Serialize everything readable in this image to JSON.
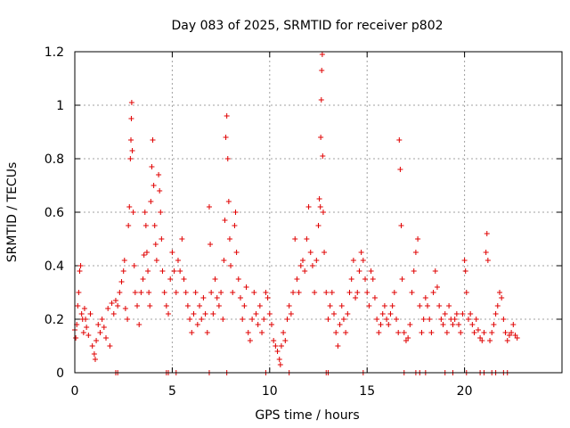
{
  "chart_data": {
    "type": "scatter",
    "title": "Day 083 of 2025, SRMTID for receiver p802",
    "xlabel": "GPS time / hours",
    "ylabel": "SRMTID / TECUs",
    "xlim": [
      0,
      25
    ],
    "ylim": [
      0,
      1.2
    ],
    "xticks": [
      0,
      5,
      10,
      15,
      20
    ],
    "xtick_labels": [
      "0",
      "5",
      "10",
      "15",
      "20"
    ],
    "yticks": [
      0,
      0.2,
      0.4,
      0.6,
      0.8,
      1.0,
      1.2
    ],
    "ytick_labels": [
      "0",
      "0.2",
      "0.4",
      "0.6",
      "0.8",
      "1",
      "1.2"
    ],
    "grid": true,
    "marker": "+",
    "color": "#e00000",
    "series": [
      {
        "name": "SRMTID",
        "points": [
          [
            0.0,
            0.16
          ],
          [
            0.05,
            0.13
          ],
          [
            0.1,
            0.18
          ],
          [
            0.15,
            0.25
          ],
          [
            0.2,
            0.3
          ],
          [
            0.25,
            0.38
          ],
          [
            0.3,
            0.4
          ],
          [
            0.35,
            0.22
          ],
          [
            0.4,
            0.2
          ],
          [
            0.45,
            0.15
          ],
          [
            0.5,
            0.24
          ],
          [
            0.55,
            0.2
          ],
          [
            0.6,
            0.17
          ],
          [
            0.7,
            0.14
          ],
          [
            0.8,
            0.22
          ],
          [
            0.9,
            0.1
          ],
          [
            1.0,
            0.07
          ],
          [
            1.05,
            0.05
          ],
          [
            1.1,
            0.12
          ],
          [
            1.2,
            0.18
          ],
          [
            1.3,
            0.15
          ],
          [
            1.4,
            0.2
          ],
          [
            1.5,
            0.17
          ],
          [
            1.6,
            0.13
          ],
          [
            1.7,
            0.24
          ],
          [
            1.8,
            0.1
          ],
          [
            1.9,
            0.26
          ],
          [
            2.0,
            0.22
          ],
          [
            2.1,
            0.27
          ],
          [
            2.2,
            0.25
          ],
          [
            2.3,
            0.3
          ],
          [
            2.4,
            0.34
          ],
          [
            2.5,
            0.38
          ],
          [
            2.55,
            0.42
          ],
          [
            2.6,
            0.24
          ],
          [
            2.7,
            0.2
          ],
          [
            2.75,
            0.55
          ],
          [
            2.8,
            0.62
          ],
          [
            2.85,
            0.8
          ],
          [
            2.88,
            0.87
          ],
          [
            2.9,
            0.95
          ],
          [
            2.92,
            1.01
          ],
          [
            2.95,
            0.83
          ],
          [
            3.0,
            0.6
          ],
          [
            3.05,
            0.4
          ],
          [
            3.1,
            0.3
          ],
          [
            3.2,
            0.25
          ],
          [
            3.3,
            0.18
          ],
          [
            3.4,
            0.3
          ],
          [
            3.5,
            0.35
          ],
          [
            3.55,
            0.44
          ],
          [
            3.6,
            0.6
          ],
          [
            3.65,
            0.55
          ],
          [
            3.7,
            0.45
          ],
          [
            3.75,
            0.38
          ],
          [
            3.8,
            0.3
          ],
          [
            3.85,
            0.25
          ],
          [
            3.9,
            0.64
          ],
          [
            3.95,
            0.77
          ],
          [
            4.0,
            0.87
          ],
          [
            4.05,
            0.7
          ],
          [
            4.1,
            0.55
          ],
          [
            4.15,
            0.48
          ],
          [
            4.2,
            0.42
          ],
          [
            4.3,
            0.74
          ],
          [
            4.35,
            0.68
          ],
          [
            4.4,
            0.6
          ],
          [
            4.45,
            0.5
          ],
          [
            4.5,
            0.38
          ],
          [
            4.6,
            0.3
          ],
          [
            4.7,
            0.25
          ],
          [
            4.8,
            0.22
          ],
          [
            4.9,
            0.35
          ],
          [
            5.0,
            0.45
          ],
          [
            5.1,
            0.38
          ],
          [
            5.2,
            0.3
          ],
          [
            5.3,
            0.42
          ],
          [
            5.4,
            0.38
          ],
          [
            5.5,
            0.5
          ],
          [
            5.6,
            0.35
          ],
          [
            5.7,
            0.3
          ],
          [
            5.8,
            0.25
          ],
          [
            5.9,
            0.2
          ],
          [
            6.0,
            0.15
          ],
          [
            6.1,
            0.22
          ],
          [
            6.2,
            0.3
          ],
          [
            6.3,
            0.18
          ],
          [
            6.4,
            0.25
          ],
          [
            6.5,
            0.2
          ],
          [
            6.6,
            0.28
          ],
          [
            6.7,
            0.22
          ],
          [
            6.8,
            0.15
          ],
          [
            6.9,
            0.62
          ],
          [
            6.95,
            0.48
          ],
          [
            7.0,
            0.3
          ],
          [
            7.1,
            0.22
          ],
          [
            7.2,
            0.35
          ],
          [
            7.3,
            0.28
          ],
          [
            7.4,
            0.25
          ],
          [
            7.5,
            0.3
          ],
          [
            7.6,
            0.2
          ],
          [
            7.65,
            0.42
          ],
          [
            7.7,
            0.57
          ],
          [
            7.75,
            0.88
          ],
          [
            7.8,
            0.96
          ],
          [
            7.85,
            0.8
          ],
          [
            7.9,
            0.64
          ],
          [
            7.95,
            0.5
          ],
          [
            8.0,
            0.4
          ],
          [
            8.1,
            0.3
          ],
          [
            8.2,
            0.55
          ],
          [
            8.25,
            0.6
          ],
          [
            8.3,
            0.45
          ],
          [
            8.4,
            0.35
          ],
          [
            8.5,
            0.28
          ],
          [
            8.6,
            0.2
          ],
          [
            8.7,
            0.25
          ],
          [
            8.8,
            0.32
          ],
          [
            8.9,
            0.15
          ],
          [
            9.0,
            0.12
          ],
          [
            9.1,
            0.2
          ],
          [
            9.2,
            0.3
          ],
          [
            9.3,
            0.22
          ],
          [
            9.4,
            0.18
          ],
          [
            9.5,
            0.25
          ],
          [
            9.6,
            0.15
          ],
          [
            9.7,
            0.2
          ],
          [
            9.8,
            0.3
          ],
          [
            9.9,
            0.28
          ],
          [
            10.0,
            0.22
          ],
          [
            10.1,
            0.18
          ],
          [
            10.2,
            0.12
          ],
          [
            10.3,
            0.1
          ],
          [
            10.4,
            0.08
          ],
          [
            10.5,
            0.05
          ],
          [
            10.55,
            0.03
          ],
          [
            10.6,
            0.1
          ],
          [
            10.7,
            0.15
          ],
          [
            10.8,
            0.12
          ],
          [
            10.9,
            0.2
          ],
          [
            11.0,
            0.25
          ],
          [
            11.1,
            0.22
          ],
          [
            11.2,
            0.3
          ],
          [
            11.3,
            0.5
          ],
          [
            11.4,
            0.35
          ],
          [
            11.5,
            0.3
          ],
          [
            11.6,
            0.4
          ],
          [
            11.7,
            0.42
          ],
          [
            11.8,
            0.38
          ],
          [
            11.9,
            0.5
          ],
          [
            12.0,
            0.62
          ],
          [
            12.1,
            0.45
          ],
          [
            12.2,
            0.4
          ],
          [
            12.3,
            0.3
          ],
          [
            12.4,
            0.42
          ],
          [
            12.5,
            0.55
          ],
          [
            12.55,
            0.65
          ],
          [
            12.6,
            0.62
          ],
          [
            12.62,
            0.88
          ],
          [
            12.65,
            1.02
          ],
          [
            12.67,
            1.13
          ],
          [
            12.7,
            1.19
          ],
          [
            12.72,
            0.81
          ],
          [
            12.75,
            0.6
          ],
          [
            12.8,
            0.45
          ],
          [
            12.9,
            0.3
          ],
          [
            13.0,
            0.2
          ],
          [
            13.1,
            0.25
          ],
          [
            13.2,
            0.3
          ],
          [
            13.3,
            0.22
          ],
          [
            13.4,
            0.15
          ],
          [
            13.5,
            0.1
          ],
          [
            13.6,
            0.18
          ],
          [
            13.7,
            0.25
          ],
          [
            13.8,
            0.2
          ],
          [
            13.9,
            0.15
          ],
          [
            14.0,
            0.22
          ],
          [
            14.1,
            0.3
          ],
          [
            14.2,
            0.35
          ],
          [
            14.3,
            0.42
          ],
          [
            14.4,
            0.28
          ],
          [
            14.5,
            0.3
          ],
          [
            14.6,
            0.38
          ],
          [
            14.7,
            0.45
          ],
          [
            14.8,
            0.42
          ],
          [
            14.9,
            0.35
          ],
          [
            15.0,
            0.3
          ],
          [
            15.1,
            0.25
          ],
          [
            15.2,
            0.38
          ],
          [
            15.3,
            0.35
          ],
          [
            15.4,
            0.28
          ],
          [
            15.5,
            0.2
          ],
          [
            15.6,
            0.15
          ],
          [
            15.7,
            0.18
          ],
          [
            15.8,
            0.22
          ],
          [
            15.9,
            0.25
          ],
          [
            16.0,
            0.2
          ],
          [
            16.1,
            0.18
          ],
          [
            16.2,
            0.22
          ],
          [
            16.3,
            0.25
          ],
          [
            16.4,
            0.3
          ],
          [
            16.5,
            0.2
          ],
          [
            16.6,
            0.15
          ],
          [
            16.65,
            0.87
          ],
          [
            16.7,
            0.76
          ],
          [
            16.75,
            0.55
          ],
          [
            16.8,
            0.35
          ],
          [
            16.9,
            0.15
          ],
          [
            17.0,
            0.12
          ],
          [
            17.1,
            0.13
          ],
          [
            17.2,
            0.18
          ],
          [
            17.3,
            0.3
          ],
          [
            17.4,
            0.38
          ],
          [
            17.5,
            0.45
          ],
          [
            17.6,
            0.5
          ],
          [
            17.7,
            0.25
          ],
          [
            17.8,
            0.15
          ],
          [
            17.9,
            0.2
          ],
          [
            18.0,
            0.28
          ],
          [
            18.1,
            0.25
          ],
          [
            18.2,
            0.2
          ],
          [
            18.3,
            0.15
          ],
          [
            18.4,
            0.3
          ],
          [
            18.5,
            0.38
          ],
          [
            18.6,
            0.32
          ],
          [
            18.7,
            0.25
          ],
          [
            18.8,
            0.2
          ],
          [
            18.9,
            0.18
          ],
          [
            19.0,
            0.22
          ],
          [
            19.1,
            0.15
          ],
          [
            19.2,
            0.25
          ],
          [
            19.3,
            0.2
          ],
          [
            19.4,
            0.18
          ],
          [
            19.5,
            0.2
          ],
          [
            19.6,
            0.22
          ],
          [
            19.7,
            0.18
          ],
          [
            19.8,
            0.15
          ],
          [
            19.9,
            0.22
          ],
          [
            20.0,
            0.42
          ],
          [
            20.05,
            0.38
          ],
          [
            20.1,
            0.3
          ],
          [
            20.2,
            0.2
          ],
          [
            20.3,
            0.22
          ],
          [
            20.4,
            0.18
          ],
          [
            20.5,
            0.15
          ],
          [
            20.6,
            0.2
          ],
          [
            20.7,
            0.16
          ],
          [
            20.8,
            0.13
          ],
          [
            20.9,
            0.12
          ],
          [
            21.0,
            0.15
          ],
          [
            21.1,
            0.45
          ],
          [
            21.15,
            0.52
          ],
          [
            21.2,
            0.42
          ],
          [
            21.3,
            0.12
          ],
          [
            21.4,
            0.15
          ],
          [
            21.5,
            0.18
          ],
          [
            21.6,
            0.22
          ],
          [
            21.7,
            0.25
          ],
          [
            21.8,
            0.3
          ],
          [
            21.9,
            0.28
          ],
          [
            22.0,
            0.2
          ],
          [
            22.1,
            0.15
          ],
          [
            22.2,
            0.12
          ],
          [
            22.3,
            0.14
          ],
          [
            22.4,
            0.15
          ],
          [
            22.5,
            0.18
          ],
          [
            22.6,
            0.14
          ],
          [
            22.7,
            0.13
          ],
          [
            2.1,
            0.0
          ],
          [
            2.2,
            0.0
          ],
          [
            4.7,
            0.0
          ],
          [
            4.8,
            0.0
          ],
          [
            5.2,
            0.0
          ],
          [
            6.9,
            0.0
          ],
          [
            7.8,
            0.0
          ],
          [
            9.8,
            0.0
          ],
          [
            11.0,
            0.0
          ],
          [
            12.9,
            0.0
          ],
          [
            13.0,
            0.0
          ],
          [
            14.8,
            0.0
          ],
          [
            16.9,
            0.0
          ],
          [
            17.5,
            0.0
          ],
          [
            17.7,
            0.0
          ],
          [
            18.0,
            0.0
          ],
          [
            19.0,
            0.0
          ],
          [
            19.4,
            0.0
          ],
          [
            20.1,
            0.0
          ],
          [
            20.8,
            0.0
          ],
          [
            21.0,
            0.0
          ],
          [
            21.4,
            0.0
          ],
          [
            21.6,
            0.0
          ],
          [
            22.0,
            0.0
          ],
          [
            22.2,
            0.0
          ]
        ]
      }
    ]
  }
}
